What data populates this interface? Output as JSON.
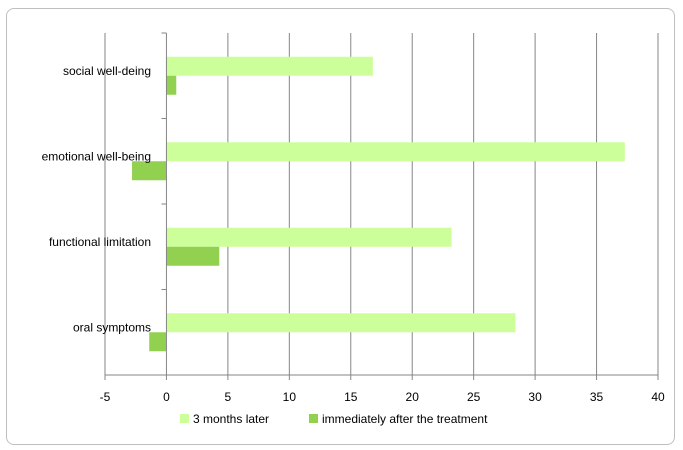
{
  "chart_data": {
    "type": "bar",
    "orientation": "horizontal",
    "categories": [
      "social well-deing",
      "emotional well-being",
      "functional limitation",
      "oral symptoms"
    ],
    "series": [
      {
        "name": "3 months later",
        "color": "#ccff99",
        "values": [
          16.8,
          37.3,
          23.2,
          28.4
        ]
      },
      {
        "name": "immediately after the treatment",
        "color": "#92d050",
        "values": [
          0.8,
          -2.8,
          4.3,
          -1.4
        ]
      }
    ],
    "xlim": [
      -5,
      40
    ],
    "xticks": [
      -5,
      0,
      5,
      10,
      15,
      20,
      25,
      30,
      35,
      40
    ],
    "grid": true,
    "legend_position": "bottom"
  }
}
